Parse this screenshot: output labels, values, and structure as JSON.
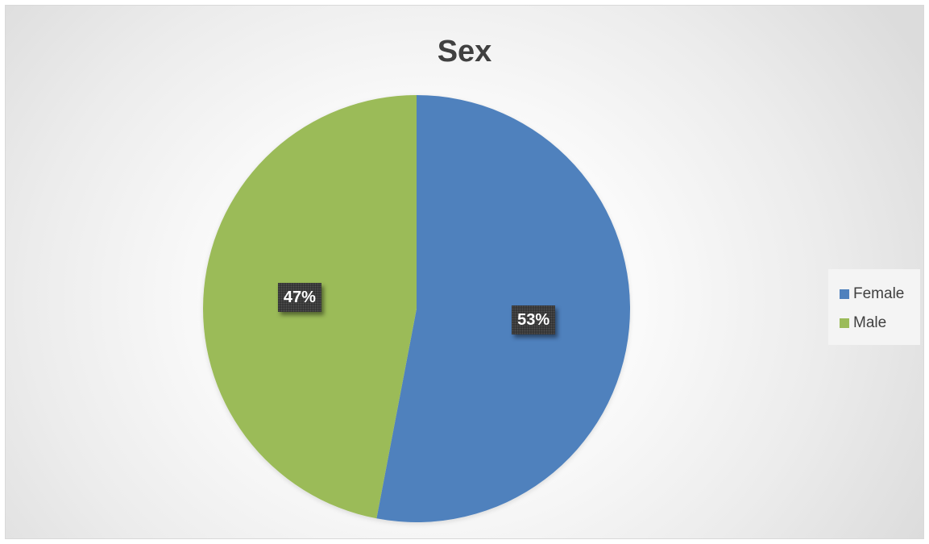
{
  "chart_data": {
    "type": "pie",
    "title": "Sex",
    "slices": [
      {
        "label": "Female",
        "value": 53,
        "display": "53%",
        "color": "#4f81bd"
      },
      {
        "label": "Male",
        "value": 47,
        "display": "47%",
        "color": "#9bbb59"
      }
    ],
    "start_angle_deg": 0,
    "direction": "clockwise",
    "legend_position": "right"
  }
}
